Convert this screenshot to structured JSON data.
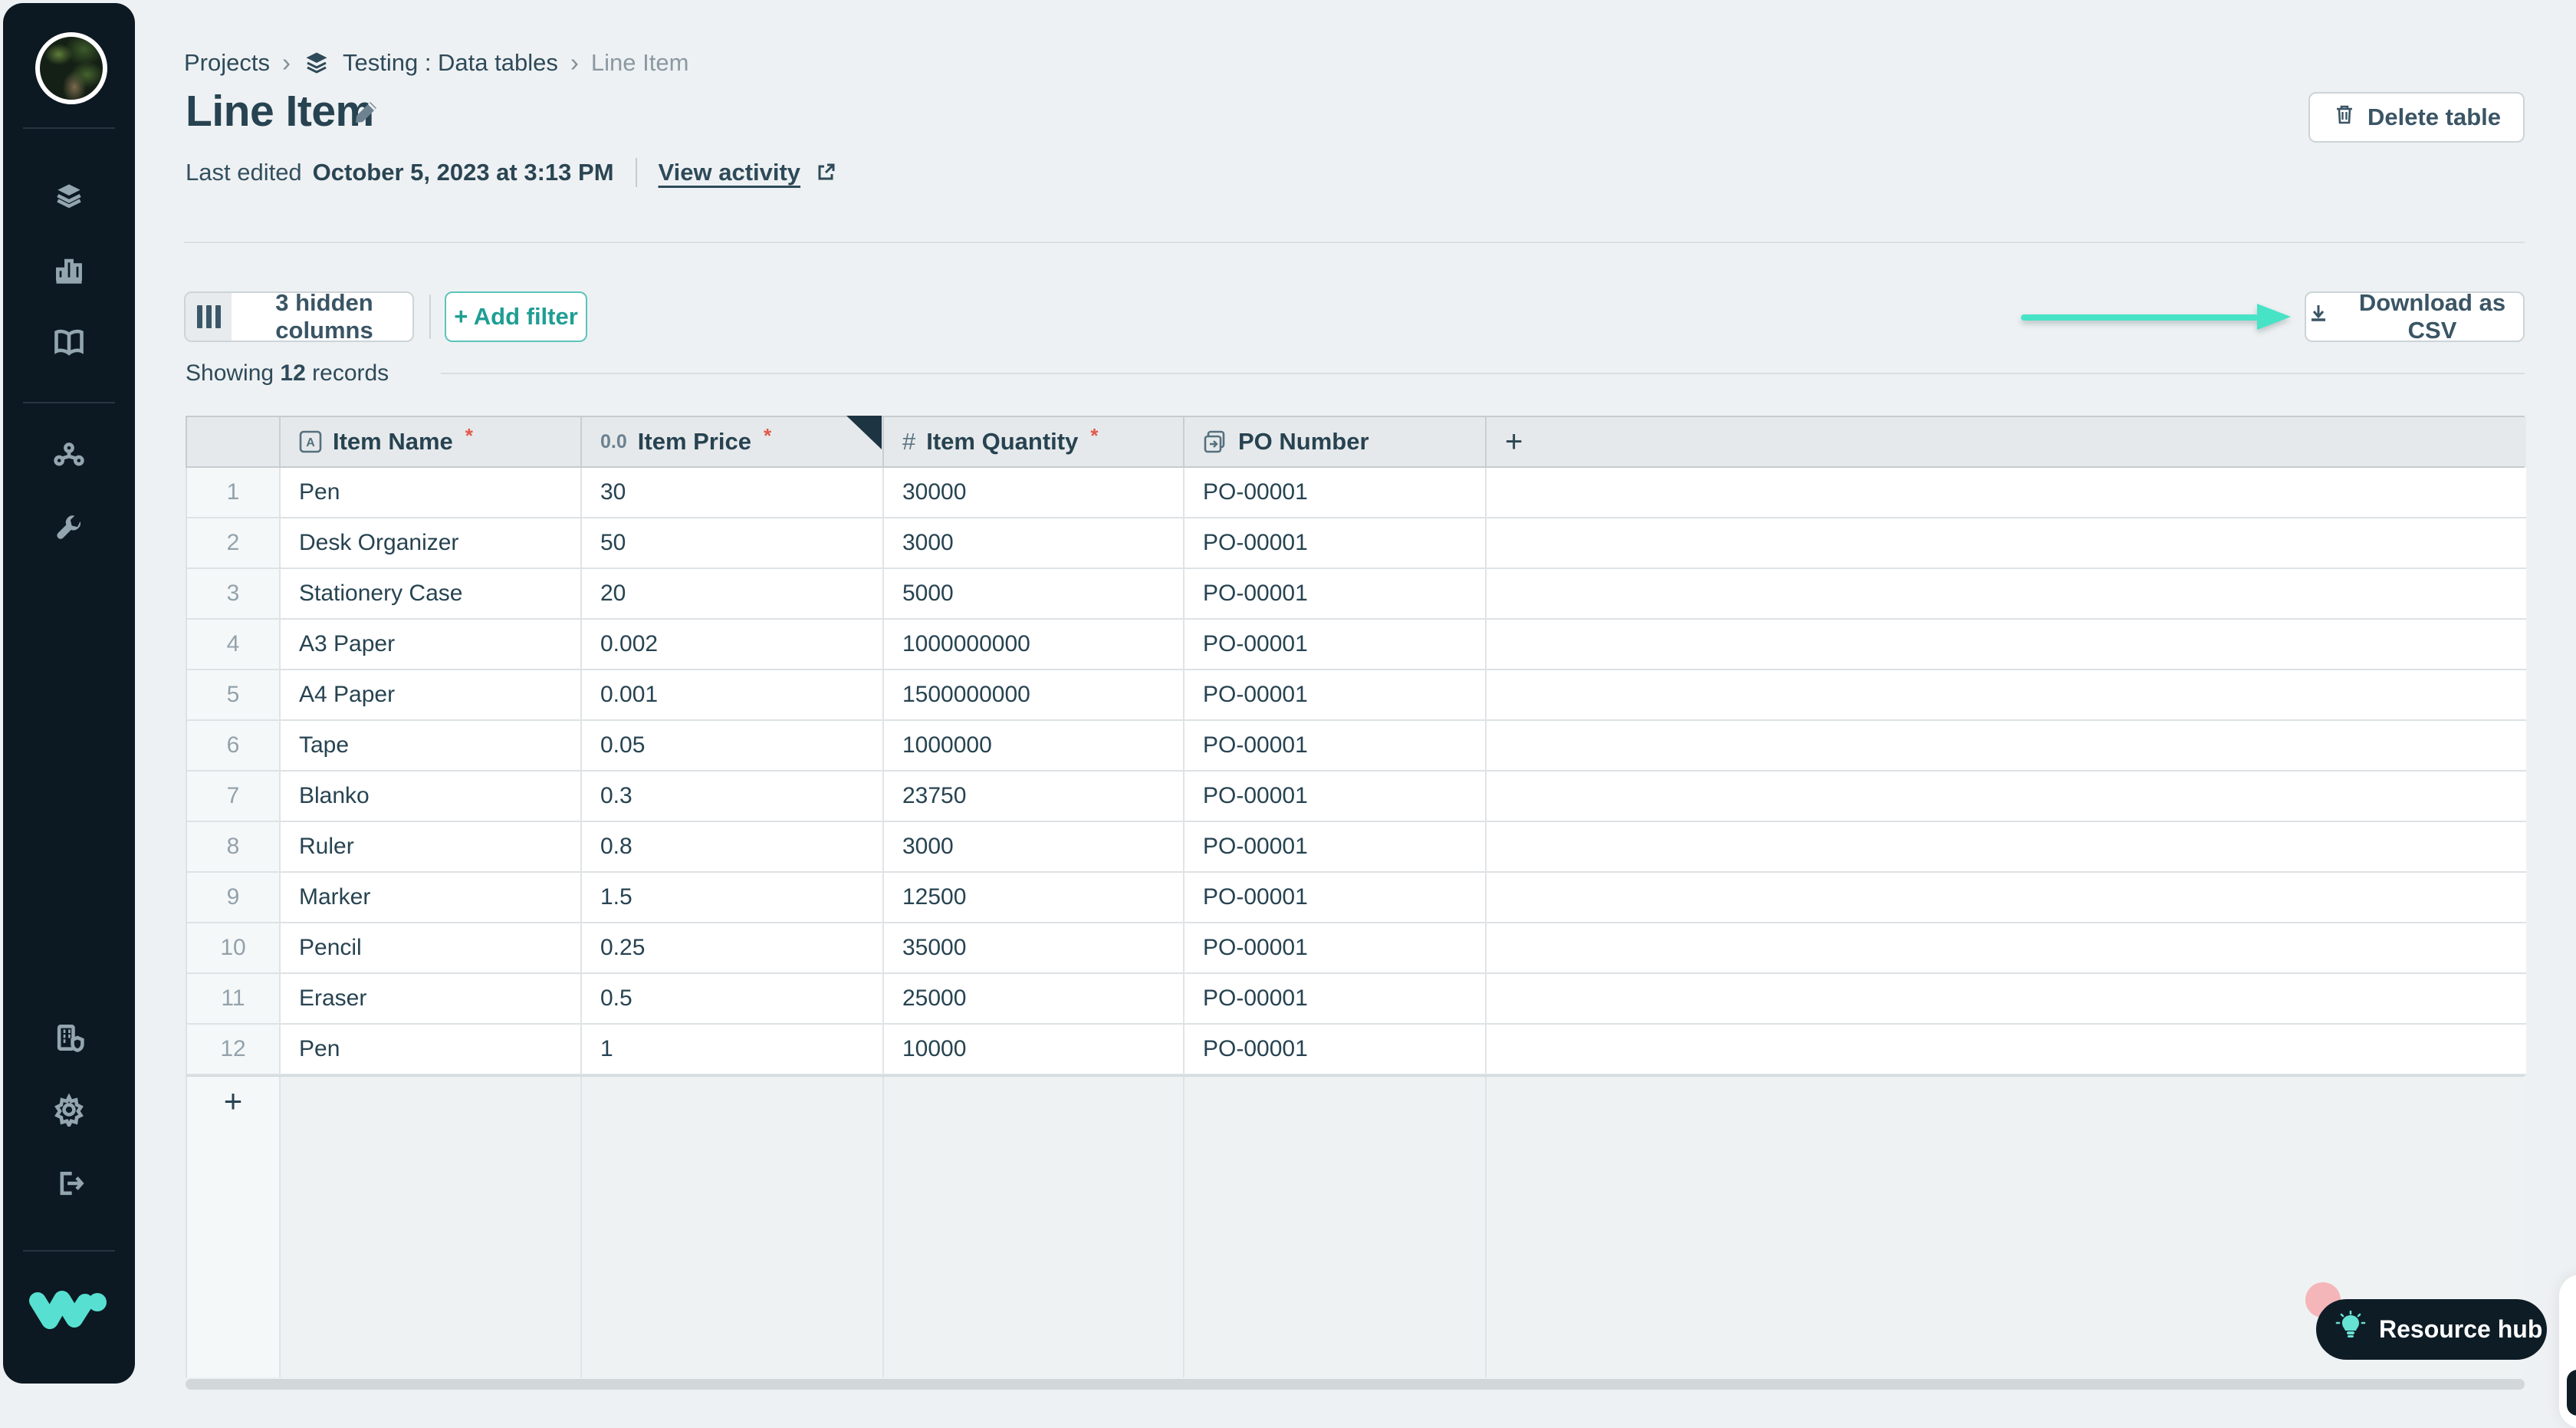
{
  "colors": {
    "accent_teal": "#1f9e94",
    "arrow_teal": "#47e3c6",
    "sidebar_bg": "#0c1822",
    "required_red": "#e2574a",
    "logo_teal": "#57e0d1",
    "notification_pink": "#f4b6b9"
  },
  "sidebar": {
    "icons": [
      "avatar",
      "layers-icon",
      "bar-chart-icon",
      "book-icon",
      "share-icon",
      "wrench-icon",
      "building-shield-icon",
      "gear-icon",
      "sign-out-icon",
      "w-logo"
    ]
  },
  "breadcrumb": {
    "items": [
      "Projects",
      "Testing : Data tables",
      "Line Item"
    ],
    "separator": "›"
  },
  "header": {
    "title": "Line Item",
    "last_edited_prefix": "Last edited",
    "last_edited_date": "October 5, 2023 at 3:13 PM",
    "view_activity": "View activity",
    "delete_button": "Delete table"
  },
  "toolbar": {
    "hidden_columns": "3 hidden columns",
    "add_filter": "+ Add filter",
    "download_csv": "Download as CSV"
  },
  "status": {
    "showing_prefix": "Showing",
    "record_count": "12",
    "showing_suffix": "records"
  },
  "table": {
    "required_marker": "*",
    "add_column_label": "+",
    "add_row_label": "+",
    "columns": [
      {
        "label": "Item Name",
        "type": "text",
        "required": true
      },
      {
        "label": "Item Price",
        "type": "decimal",
        "required": true
      },
      {
        "label": "Item Quantity",
        "type": "integer",
        "required": true
      },
      {
        "label": "PO Number",
        "type": "linked-record",
        "required": false
      }
    ],
    "rows": [
      [
        "1",
        "Pen",
        "30",
        "30000",
        "PO-00001"
      ],
      [
        "2",
        "Desk Organizer",
        "50",
        "3000",
        "PO-00001"
      ],
      [
        "3",
        "Stationery Case",
        "20",
        "5000",
        "PO-00001"
      ],
      [
        "4",
        "A3 Paper",
        "0.002",
        "1000000000",
        "PO-00001"
      ],
      [
        "5",
        "A4 Paper",
        "0.001",
        "1500000000",
        "PO-00001"
      ],
      [
        "6",
        "Tape",
        "0.05",
        "1000000",
        "PO-00001"
      ],
      [
        "7",
        "Blanko",
        "0.3",
        "23750",
        "PO-00001"
      ],
      [
        "8",
        "Ruler",
        "0.8",
        "3000",
        "PO-00001"
      ],
      [
        "9",
        "Marker",
        "1.5",
        "12500",
        "PO-00001"
      ],
      [
        "10",
        "Pencil",
        "0.25",
        "35000",
        "PO-00001"
      ],
      [
        "11",
        "Eraser",
        "0.5",
        "25000",
        "PO-00001"
      ],
      [
        "12",
        "Pen",
        "1",
        "10000",
        "PO-00001"
      ]
    ]
  },
  "footer": {
    "resource_hub": "Resource hub"
  }
}
